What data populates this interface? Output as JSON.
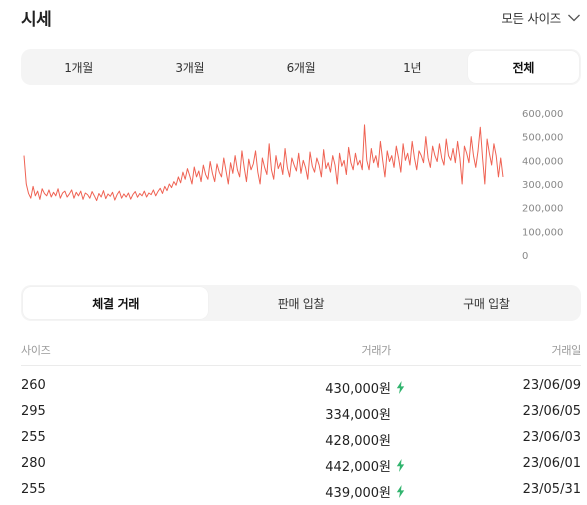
{
  "header": {
    "title": "시세",
    "size_select_label": "모든 사이즈"
  },
  "period_tabs": [
    {
      "label": "1개월",
      "active": false
    },
    {
      "label": "3개월",
      "active": false
    },
    {
      "label": "6개월",
      "active": false
    },
    {
      "label": "1년",
      "active": false
    },
    {
      "label": "전체",
      "active": true
    }
  ],
  "chart_data": {
    "type": "line",
    "title": "",
    "xlabel": "",
    "ylabel": "",
    "ylim": [
      0,
      600000
    ],
    "y_ticks": [
      "600,000",
      "500,000",
      "400,000",
      "300,000",
      "200,000",
      "100,000",
      "0"
    ],
    "y_tick_values": [
      600000,
      500000,
      400000,
      300000,
      200000,
      100000,
      0
    ],
    "grid": false,
    "legend": "none",
    "line_color": "#ef6253",
    "series": [
      {
        "values": [
          420000,
          300000,
          260000,
          240000,
          290000,
          250000,
          270000,
          235000,
          280000,
          260000,
          250000,
          275000,
          245000,
          265000,
          250000,
          280000,
          240000,
          262000,
          270000,
          245000,
          258000,
          275000,
          240000,
          265000,
          250000,
          270000,
          235000,
          262000,
          255000,
          240000,
          268000,
          250000,
          230000,
          260000,
          245000,
          272000,
          238000,
          258000,
          248000,
          265000,
          232000,
          255000,
          270000,
          240000,
          258000,
          245000,
          262000,
          236000,
          256000,
          268000,
          244000,
          260000,
          250000,
          270000,
          245000,
          262000,
          255000,
          275000,
          250000,
          268000,
          282000,
          260000,
          290000,
          272000,
          300000,
          285000,
          310000,
          295000,
          330000,
          305000,
          350000,
          320000,
          365000,
          335000,
          300000,
          372000,
          330000,
          355000,
          310000,
          380000,
          340000,
          320000,
          395000,
          345000,
          310000,
          385000,
          350000,
          330000,
          410000,
          355000,
          300000,
          390000,
          345000,
          420000,
          360000,
          330000,
          440000,
          370000,
          310000,
          405000,
          360000,
          385000,
          440000,
          350000,
          300000,
          410000,
          370000,
          340000,
          470000,
          360000,
          320000,
          420000,
          365000,
          390000,
          340000,
          450000,
          370000,
          330000,
          410000,
          380000,
          355000,
          430000,
          345000,
          400000,
          370000,
          320000,
          435000,
          375000,
          350000,
          410000,
          380000,
          330000,
          445000,
          365000,
          390000,
          350000,
          420000,
          380000,
          300000,
          430000,
          375000,
          400000,
          340000,
          455000,
          390000,
          360000,
          430000,
          380000,
          400000,
          360000,
          550000,
          400000,
          360000,
          450000,
          390000,
          420000,
          370000,
          480000,
          400000,
          330000,
          440000,
          395000,
          420000,
          370000,
          460000,
          410000,
          350000,
          470000,
          400000,
          430000,
          380000,
          480000,
          410000,
          360000,
          440000,
          420000,
          390000,
          500000,
          410000,
          370000,
          460000,
          420000,
          395000,
          470000,
          410000,
          380000,
          490000,
          420000,
          400000,
          450000,
          390000,
          480000,
          410000,
          300000,
          460000,
          430000,
          390000,
          500000,
          420000,
          370000,
          440000,
          540000,
          410000,
          300000,
          490000,
          430000,
          380000,
          470000,
          420000,
          330000,
          410000,
          330000
        ]
      }
    ]
  },
  "trade_tabs": [
    {
      "label": "체결 거래",
      "active": true
    },
    {
      "label": "판매 입찰",
      "active": false
    },
    {
      "label": "구매 입찰",
      "active": false
    }
  ],
  "table": {
    "headers": {
      "size": "사이즈",
      "price": "거래가",
      "date": "거래일"
    },
    "rows": [
      {
        "size": "260",
        "price": "430,000원",
        "date": "23/06/09",
        "fast": true
      },
      {
        "size": "295",
        "price": "334,000원",
        "date": "23/06/05",
        "fast": false
      },
      {
        "size": "255",
        "price": "428,000원",
        "date": "23/06/03",
        "fast": false
      },
      {
        "size": "280",
        "price": "442,000원",
        "date": "23/06/01",
        "fast": true
      },
      {
        "size": "255",
        "price": "439,000원",
        "date": "23/05/31",
        "fast": true
      }
    ],
    "fast_icon_color": "#31b46e"
  }
}
